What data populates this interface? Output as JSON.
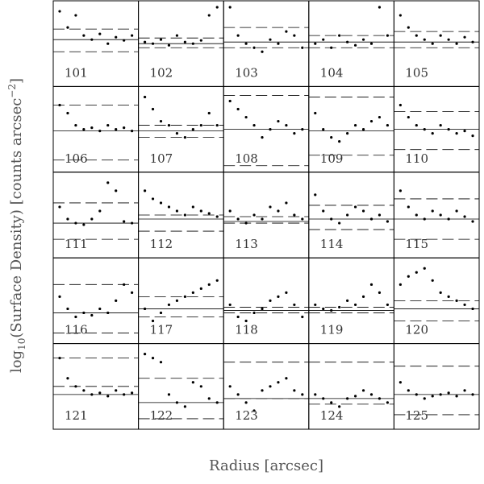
{
  "chart_data": {
    "type": "scatter-grid",
    "xlabel": "Radius [arcsec]",
    "ylabel": [
      "log",
      "10",
      "(Surface Density) [counts arcsec",
      "−2",
      "]"
    ],
    "xlim": [
      0,
      100
    ],
    "ylim": [
      0,
      100
    ],
    "color": "#000",
    "x": [
      5,
      15,
      25,
      35,
      45,
      55,
      65,
      75,
      85,
      95
    ],
    "panels": [
      {
        "label": "101",
        "values": [
          90,
          70,
          85,
          60,
          55,
          62,
          50,
          58,
          54,
          60
        ],
        "mean": 55,
        "dashed": [
          40,
          68
        ]
      },
      {
        "label": "102",
        "values": [
          52,
          50,
          55,
          48,
          60,
          52,
          50,
          54,
          85,
          95
        ],
        "mean": 50,
        "dashed": [
          45,
          57
        ]
      },
      {
        "label": "103",
        "values": [
          95,
          60,
          50,
          45,
          40,
          55,
          50,
          65,
          60,
          45
        ],
        "mean": 52,
        "dashed": [
          45,
          70
        ]
      },
      {
        "label": "104",
        "values": [
          50,
          55,
          45,
          60,
          52,
          48,
          55,
          50,
          95,
          60
        ],
        "mean": 52,
        "dashed": [
          45,
          60
        ]
      },
      {
        "label": "105",
        "values": [
          85,
          70,
          60,
          55,
          50,
          60,
          55,
          50,
          58,
          52
        ],
        "mean": 52,
        "dashed": [
          45,
          65
        ]
      },
      {
        "label": "106",
        "values": [
          80,
          70,
          55,
          50,
          52,
          48,
          55,
          50,
          52,
          48
        ],
        "mean": 48,
        "dashed": [
          12,
          80
        ]
      },
      {
        "label": "107",
        "values": [
          90,
          75,
          60,
          55,
          45,
          40,
          50,
          55,
          70,
          55
        ],
        "mean": 48,
        "dashed": [
          40,
          55
        ]
      },
      {
        "label": "108",
        "values": [
          85,
          75,
          65,
          55,
          40,
          50,
          60,
          55,
          45,
          50
        ],
        "mean": 50,
        "dashed": [
          5,
          92
        ]
      },
      {
        "label": "109",
        "values": [
          70,
          50,
          40,
          35,
          45,
          55,
          50,
          60,
          65,
          55
        ],
        "mean": 48,
        "dashed": [
          18,
          90
        ]
      },
      {
        "label": "110",
        "values": [
          80,
          65,
          55,
          50,
          45,
          55,
          50,
          45,
          48,
          42
        ],
        "mean": 50,
        "dashed": [
          25,
          72
        ]
      },
      {
        "label": "111",
        "values": [
          60,
          45,
          40,
          38,
          45,
          55,
          90,
          80,
          42,
          40
        ],
        "mean": 40,
        "dashed": [
          20,
          65
        ]
      },
      {
        "label": "112",
        "values": [
          80,
          70,
          65,
          60,
          55,
          50,
          60,
          55,
          52,
          48
        ],
        "mean": 45,
        "dashed": [
          30,
          50
        ]
      },
      {
        "label": "113",
        "values": [
          55,
          45,
          40,
          50,
          45,
          60,
          55,
          65,
          50,
          45
        ],
        "mean": 42,
        "dashed": [
          40,
          48
        ]
      },
      {
        "label": "114",
        "values": [
          75,
          55,
          45,
          40,
          50,
          60,
          55,
          45,
          50,
          42
        ],
        "mean": 45,
        "dashed": [
          32,
          62
        ]
      },
      {
        "label": "115",
        "values": [
          80,
          60,
          50,
          45,
          55,
          50,
          45,
          55,
          48,
          42
        ],
        "mean": 45,
        "dashed": [
          20,
          70
        ]
      },
      {
        "label": "116",
        "values": [
          55,
          40,
          30,
          35,
          32,
          40,
          35,
          50,
          70,
          60
        ],
        "mean": 35,
        "dashed": [
          10,
          70
        ]
      },
      {
        "label": "117",
        "values": [
          40,
          25,
          35,
          45,
          50,
          55,
          60,
          65,
          70,
          75
        ],
        "mean": 40,
        "dashed": [
          30,
          55
        ]
      },
      {
        "label": "118",
        "values": [
          45,
          30,
          25,
          35,
          40,
          50,
          55,
          60,
          45,
          30
        ],
        "mean": 38,
        "dashed": [
          35,
          42
        ]
      },
      {
        "label": "119",
        "values": [
          45,
          40,
          38,
          42,
          50,
          45,
          55,
          70,
          60,
          45
        ],
        "mean": 38,
        "dashed": [
          35,
          42
        ]
      },
      {
        "label": "120",
        "values": [
          70,
          80,
          85,
          90,
          75,
          60,
          55,
          50,
          45,
          40
        ],
        "mean": 40,
        "dashed": [
          25,
          50
        ]
      },
      {
        "label": "121",
        "values": [
          85,
          60,
          50,
          45,
          40,
          42,
          38,
          45,
          40,
          42
        ],
        "mean": 40,
        "dashed": [
          50,
          85
        ]
      },
      {
        "label": "122",
        "values": [
          90,
          85,
          80,
          40,
          30,
          25,
          55,
          50,
          35,
          30
        ],
        "mean": 30,
        "dashed": [
          10,
          60
        ]
      },
      {
        "label": "123",
        "values": [
          50,
          40,
          30,
          20,
          45,
          50,
          55,
          60,
          45,
          40
        ],
        "mean": 35,
        "dashed": [
          35,
          80
        ]
      },
      {
        "label": "124",
        "values": [
          40,
          35,
          30,
          25,
          35,
          38,
          45,
          40,
          35,
          30
        ],
        "mean": 35,
        "dashed": [
          28,
          80
        ]
      },
      {
        "label": "125",
        "values": [
          55,
          45,
          40,
          35,
          38,
          40,
          42,
          38,
          45,
          40
        ],
        "mean": 40,
        "dashed": [
          15,
          75
        ]
      }
    ]
  }
}
